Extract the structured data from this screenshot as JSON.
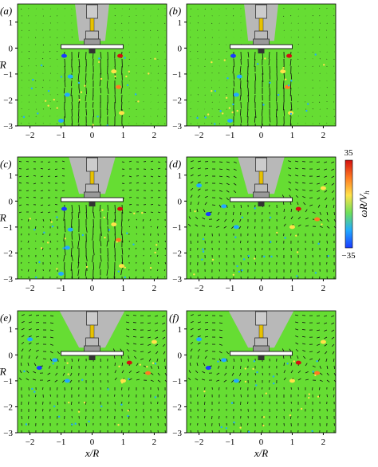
{
  "figure": {
    "panels": [
      {
        "label": "(a)",
        "letter": "a"
      },
      {
        "label": "(b)",
        "letter": "b"
      },
      {
        "label": "(c)",
        "letter": "c"
      },
      {
        "label": "(d)",
        "letter": "d"
      },
      {
        "label": "(e)",
        "letter": "e"
      },
      {
        "label": "(f)",
        "letter": "f"
      }
    ],
    "x_axis_label": "x/R",
    "y_axis_label": "y/R",
    "x_ticks": [
      "−2",
      "−1",
      "0",
      "1",
      "2"
    ],
    "y_ticks": [
      "1",
      "0",
      "−1",
      "−2",
      "−3"
    ],
    "colorbar": {
      "label": "ωR/V",
      "label_sub": "h",
      "max_label": "35",
      "min_label": "−35",
      "colors": [
        "#1a3cff",
        "#22aaff",
        "#6ee05a",
        "#ffe24a",
        "#ff7a22",
        "#d41010"
      ]
    },
    "colors": {
      "field": "#66dd33",
      "rotor_gray": "#b8b8b8",
      "arrow": "#111111"
    },
    "icons": [
      "rotor-diagram-icon"
    ]
  }
}
